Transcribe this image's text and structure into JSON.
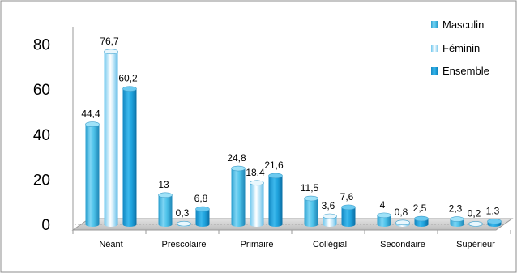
{
  "chart_data": {
    "type": "bar",
    "title": "",
    "xlabel": "",
    "ylabel": "",
    "categories": [
      "Néant",
      "Préscolaire",
      "Primaire",
      "Collégial",
      "Secondaire",
      "Supérieur"
    ],
    "series": [
      {
        "name": "Masculin",
        "values": [
          44.4,
          13,
          24.8,
          11.5,
          4,
          2.3
        ],
        "labels": [
          "44,4",
          "13",
          "24,8",
          "11,5",
          "4",
          "2,3"
        ]
      },
      {
        "name": "Féminin",
        "values": [
          76.7,
          0.3,
          18.4,
          3.6,
          0.8,
          0.2
        ],
        "labels": [
          "76,7",
          "0,3",
          "18,4",
          "3,6",
          "0,8",
          "0,2"
        ]
      },
      {
        "name": "Ensemble",
        "values": [
          60.2,
          6.8,
          21.6,
          7.6,
          2.5,
          1.3
        ],
        "labels": [
          "60,2",
          "6,8",
          "21,6",
          "7,6",
          "2,5",
          "1,3"
        ]
      }
    ],
    "ylim": [
      0,
      80
    ],
    "yticks": [
      0,
      20,
      40,
      60,
      80
    ],
    "grid": false,
    "legend_position": "top-right",
    "style": "3d-cylinder",
    "colors": {
      "Masculin": "#4fc3ea",
      "Féminin": "#a9ddf5",
      "Ensemble": "#1fa3dd",
      "floor": "#c8c8c8"
    }
  }
}
